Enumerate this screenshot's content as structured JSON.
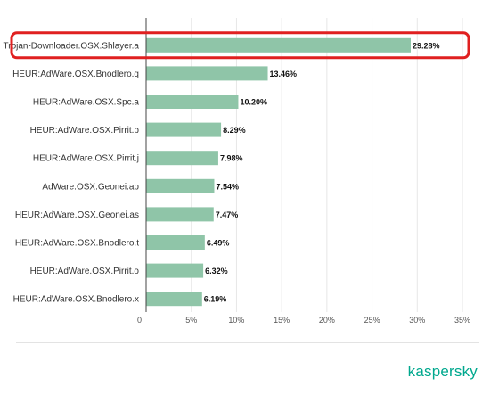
{
  "brand": {
    "logo_text": "kaspersky",
    "logo_color": "#00a88e"
  },
  "colors": {
    "bar": "#8fc5a8",
    "highlight": "#e02020",
    "axis": "#444444",
    "grid": "#e6e6e6"
  },
  "chart_data": {
    "type": "bar",
    "orientation": "horizontal",
    "title": "",
    "xlabel": "",
    "ylabel": "",
    "xlim": [
      0,
      35
    ],
    "x_ticks": [
      0,
      5,
      10,
      15,
      20,
      25,
      30,
      35
    ],
    "x_tick_labels": [
      "0",
      "5%",
      "10%",
      "15%",
      "20%",
      "25%",
      "30%",
      "35%"
    ],
    "grid": true,
    "categories": [
      "Trojan-Downloader.OSX.Shlayer.a",
      "HEUR:AdWare.OSX.Bnodlero.q",
      "HEUR:AdWare.OSX.Spc.a",
      "HEUR:AdWare.OSX.Pirrit.p",
      "HEUR:AdWare.OSX.Pirrit.j",
      "AdWare.OSX.Geonei.ap",
      "HEUR:AdWare.OSX.Geonei.as",
      "HEUR:AdWare.OSX.Bnodlero.t",
      "HEUR:AdWare.OSX.Pirrit.o",
      "HEUR:AdWare.OSX.Bnodlero.x"
    ],
    "values": [
      29.28,
      13.46,
      10.2,
      8.29,
      7.98,
      7.54,
      7.47,
      6.49,
      6.32,
      6.19
    ],
    "value_labels": [
      "29.28%",
      "13.46%",
      "10.20%",
      "8.29%",
      "7.98%",
      "7.54%",
      "7.47%",
      "6.49%",
      "6.32%",
      "6.19%"
    ],
    "highlighted_index": 0
  }
}
